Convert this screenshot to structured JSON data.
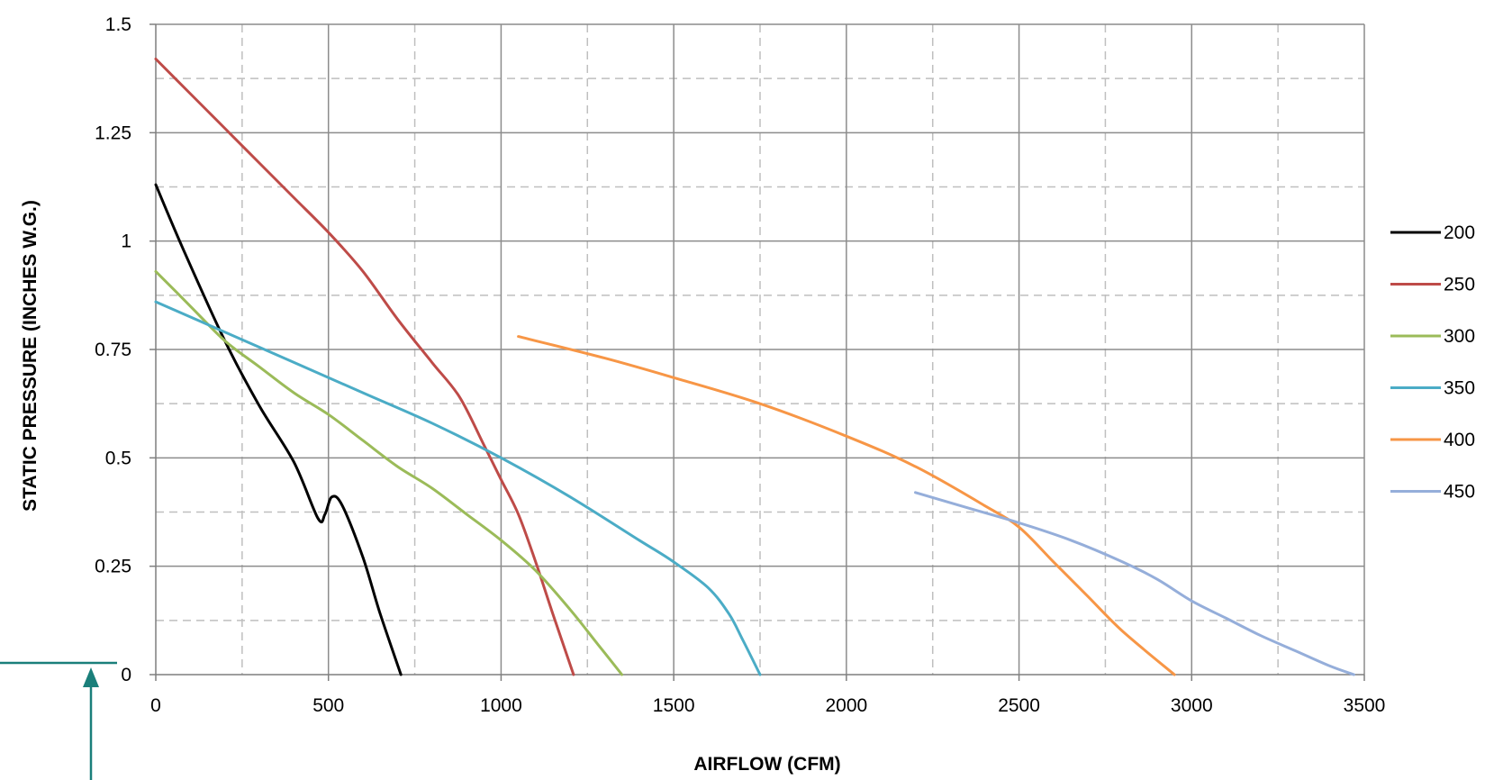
{
  "chart_data": {
    "type": "line",
    "title": "",
    "xlabel": "AIRFLOW (CFM)",
    "ylabel": "STATIC PRESSURE (INCHES W.G.)",
    "xlim": [
      0,
      3500
    ],
    "ylim": [
      0,
      1.5
    ],
    "x_ticks": [
      0,
      500,
      1000,
      1500,
      2000,
      2500,
      3000,
      3500
    ],
    "y_ticks": [
      0,
      0.25,
      0.5,
      0.75,
      1,
      1.25,
      1.5
    ],
    "x_tick_labels": [
      "0",
      "500",
      "1000",
      "1500",
      "2000",
      "2500",
      "3000",
      "3500"
    ],
    "y_tick_labels": [
      "0",
      "0.25",
      "0.5",
      "0.75",
      "1",
      "1.25",
      "1.5"
    ],
    "grid": {
      "major": true,
      "minor_dashed": true
    },
    "legend_position": "right",
    "series": [
      {
        "name": "200",
        "color": "#000000",
        "points": [
          [
            0,
            1.13
          ],
          [
            80,
            0.98
          ],
          [
            200,
            0.77
          ],
          [
            300,
            0.62
          ],
          [
            400,
            0.49
          ],
          [
            470,
            0.36
          ],
          [
            490,
            0.37
          ],
          [
            510,
            0.41
          ],
          [
            540,
            0.39
          ],
          [
            600,
            0.27
          ],
          [
            650,
            0.14
          ],
          [
            710,
            0
          ]
        ]
      },
      {
        "name": "250",
        "color": "#BE4B48",
        "points": [
          [
            0,
            1.42
          ],
          [
            100,
            1.34
          ],
          [
            200,
            1.26
          ],
          [
            300,
            1.18
          ],
          [
            400,
            1.1
          ],
          [
            500,
            1.02
          ],
          [
            600,
            0.93
          ],
          [
            700,
            0.82
          ],
          [
            800,
            0.72
          ],
          [
            880,
            0.64
          ],
          [
            950,
            0.53
          ],
          [
            1000,
            0.45
          ],
          [
            1050,
            0.37
          ],
          [
            1100,
            0.26
          ],
          [
            1150,
            0.14
          ],
          [
            1210,
            0
          ]
        ]
      },
      {
        "name": "300",
        "color": "#9BBB59",
        "points": [
          [
            0,
            0.93
          ],
          [
            100,
            0.85
          ],
          [
            200,
            0.77
          ],
          [
            300,
            0.71
          ],
          [
            400,
            0.65
          ],
          [
            500,
            0.6
          ],
          [
            600,
            0.54
          ],
          [
            700,
            0.48
          ],
          [
            800,
            0.43
          ],
          [
            900,
            0.37
          ],
          [
            1000,
            0.31
          ],
          [
            1100,
            0.24
          ],
          [
            1200,
            0.15
          ],
          [
            1280,
            0.07
          ],
          [
            1350,
            0
          ]
        ]
      },
      {
        "name": "350",
        "color": "#4BACC6",
        "points": [
          [
            0,
            0.86
          ],
          [
            200,
            0.79
          ],
          [
            400,
            0.72
          ],
          [
            600,
            0.65
          ],
          [
            800,
            0.58
          ],
          [
            1000,
            0.5
          ],
          [
            1200,
            0.41
          ],
          [
            1400,
            0.31
          ],
          [
            1500,
            0.26
          ],
          [
            1600,
            0.2
          ],
          [
            1660,
            0.14
          ],
          [
            1700,
            0.08
          ],
          [
            1750,
            0
          ]
        ]
      },
      {
        "name": "400",
        "color": "#F79646",
        "points": [
          [
            1050,
            0.78
          ],
          [
            1300,
            0.73
          ],
          [
            1500,
            0.685
          ],
          [
            1750,
            0.625
          ],
          [
            2000,
            0.55
          ],
          [
            2200,
            0.48
          ],
          [
            2400,
            0.39
          ],
          [
            2500,
            0.34
          ],
          [
            2600,
            0.26
          ],
          [
            2700,
            0.18
          ],
          [
            2800,
            0.1
          ],
          [
            2950,
            0
          ]
        ]
      },
      {
        "name": "450",
        "color": "#95AEDA",
        "points": [
          [
            2200,
            0.42
          ],
          [
            2350,
            0.385
          ],
          [
            2500,
            0.35
          ],
          [
            2650,
            0.31
          ],
          [
            2800,
            0.26
          ],
          [
            2900,
            0.22
          ],
          [
            3000,
            0.17
          ],
          [
            3100,
            0.13
          ],
          [
            3200,
            0.09
          ],
          [
            3300,
            0.055
          ],
          [
            3400,
            0.02
          ],
          [
            3470,
            0
          ]
        ]
      }
    ]
  }
}
